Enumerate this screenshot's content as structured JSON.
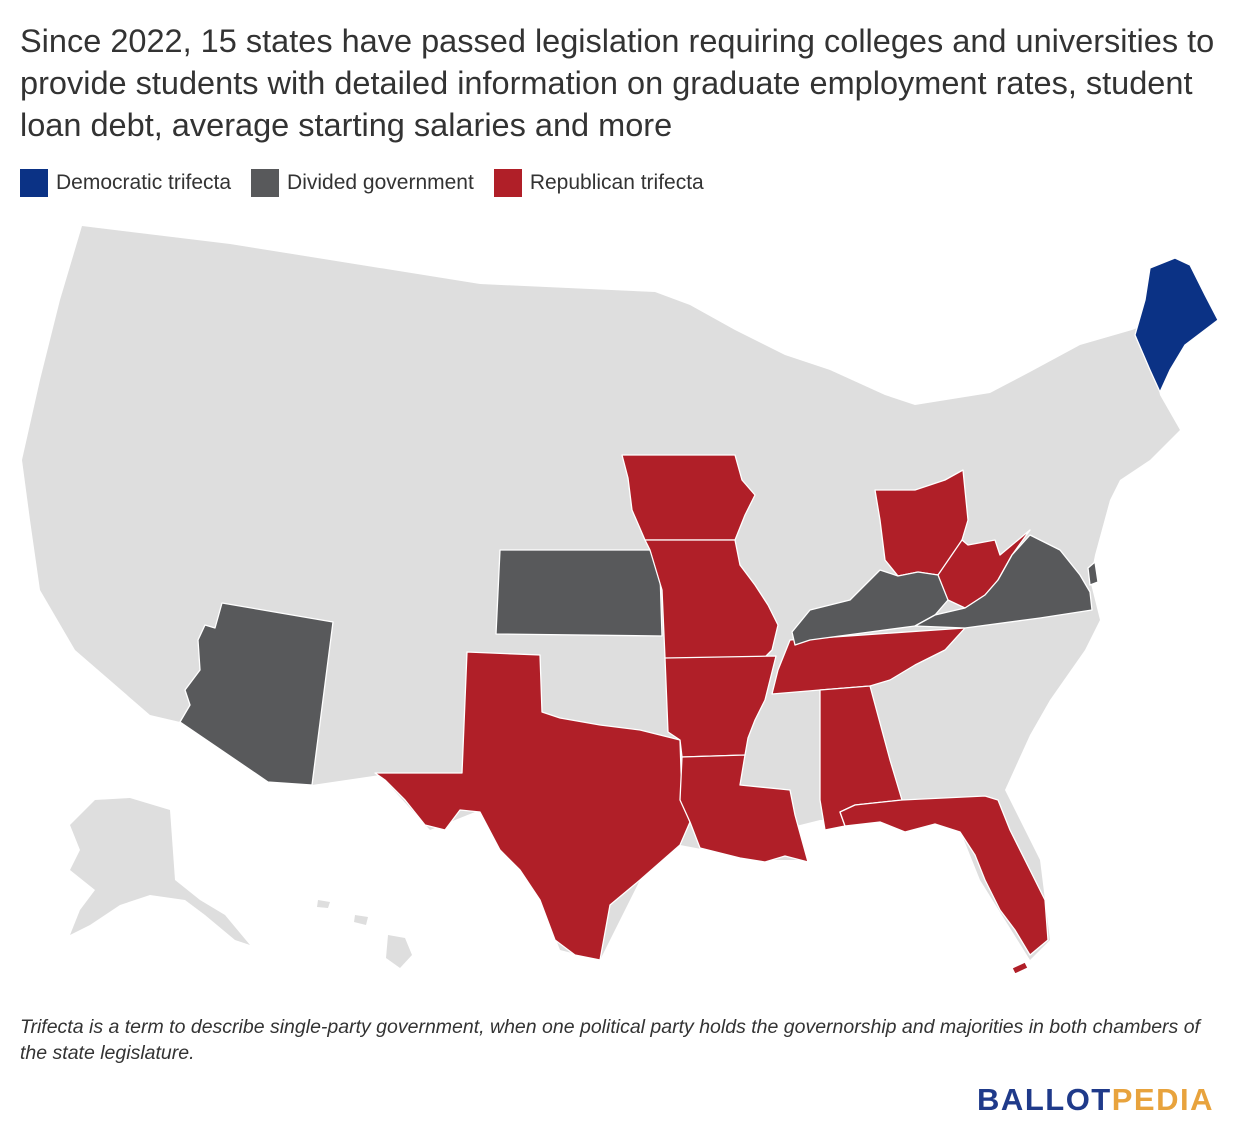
{
  "title": "Since 2022, 15 states have passed legislation requiring colleges and universities to provide students with detailed information on graduate employment rates, student loan debt, average starting salaries and more",
  "legend": [
    {
      "label": "Democratic trifecta",
      "color": "#0b3285"
    },
    {
      "label": "Divided government",
      "color": "#58595b"
    },
    {
      "label": "Republican trifecta",
      "color": "#b01f28"
    }
  ],
  "map": {
    "base_color": "#dedede",
    "state_categories": {
      "Maine": "Democratic trifecta",
      "Arizona": "Divided government",
      "Kansas": "Divided government",
      "Kentucky": "Divided government",
      "Virginia": "Divided government",
      "Iowa": "Republican trifecta",
      "Missouri": "Republican trifecta",
      "Arkansas": "Republican trifecta",
      "Louisiana": "Republican trifecta",
      "Texas": "Republican trifecta",
      "Ohio": "Republican trifecta",
      "West Virginia": "Republican trifecta",
      "Tennessee": "Republican trifecta",
      "Alabama": "Republican trifecta",
      "Florida": "Republican trifecta"
    }
  },
  "footnote": "Trifecta is a term to describe single-party government, when one political party holds the governorship and majorities in both chambers of the state legislature.",
  "logo": {
    "part1": "BALLOT",
    "part2": "PEDIA"
  }
}
